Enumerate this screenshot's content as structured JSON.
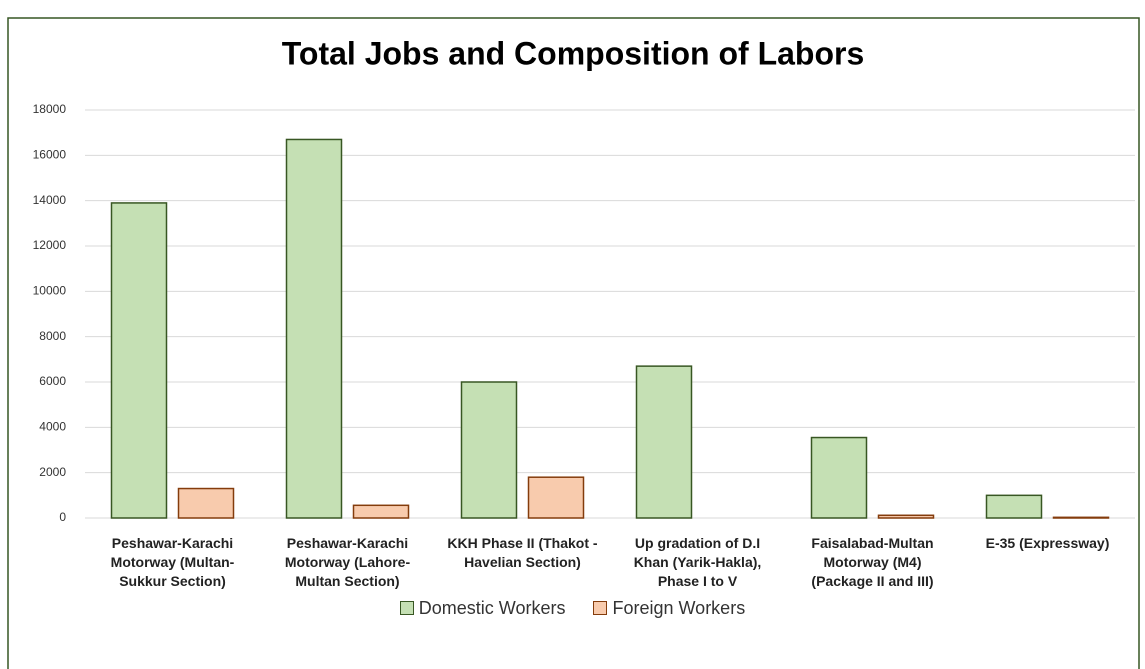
{
  "chart_data": {
    "type": "bar",
    "title": "Total Jobs and Composition of Labors",
    "categories": [
      "Peshawar-Karachi Motorway (Multan-Sukkur Section)",
      "Peshawar-Karachi Motorway (Lahore-Multan Section)",
      "KKH Phase II (Thakot - Havelian Section)",
      "Up gradation of D.I Khan (Yarik-Hakla), Phase I to V",
      "Faisalabad-Multan Motorway (M4) (Package II and III)",
      "E-35 (Expressway)"
    ],
    "series": [
      {
        "name": "Domestic Workers",
        "color": "#c5e0b4",
        "edge": "#385723",
        "values": [
          13900,
          16700,
          6000,
          6700,
          3550,
          1000
        ]
      },
      {
        "name": "Foreign Workers",
        "color": "#f8cbad",
        "edge": "#843c0c",
        "values": [
          1300,
          560,
          1800,
          0,
          120,
          30
        ]
      }
    ],
    "ylim": [
      0,
      18000
    ],
    "yticks": [
      0,
      2000,
      4000,
      6000,
      8000,
      10000,
      12000,
      14000,
      16000,
      18000
    ],
    "grid": true,
    "legend": "bottom"
  }
}
